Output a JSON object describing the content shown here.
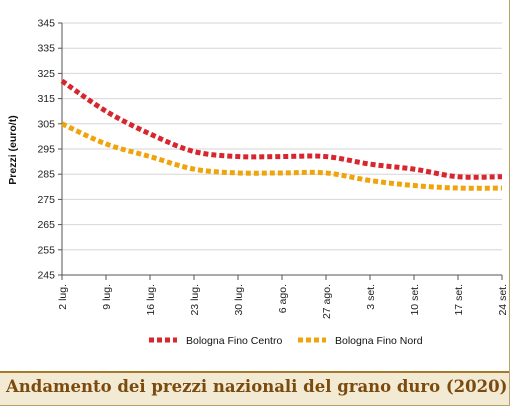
{
  "chart_data": {
    "type": "line",
    "title": "Andamento dei prezzi nazionali del grano duro (2020)",
    "xlabel": "",
    "ylabel": "Prezzi (euro/t)",
    "categories": [
      "2 lug.",
      "9 lug.",
      "16 lug.",
      "23 lug.",
      "30 lug.",
      "6 ago.",
      "27 ago.",
      "3 set.",
      "10 set.",
      "17 set.",
      "24 set."
    ],
    "yticks": [
      245,
      255,
      265,
      275,
      285,
      295,
      305,
      315,
      325,
      335,
      345
    ],
    "ylim": [
      245,
      345
    ],
    "grid": true,
    "legend_position": "bottom",
    "series": [
      {
        "name": "Bologna Fino Centro",
        "color": "#d7262e",
        "values": [
          322,
          310,
          301,
          294,
          292,
          292,
          292,
          289,
          287,
          284,
          284
        ]
      },
      {
        "name": "Bologna Fino Nord",
        "color": "#f0a30a",
        "values": [
          305,
          297,
          292,
          287,
          285.5,
          285.5,
          285.5,
          282.5,
          280.5,
          279.5,
          279.5
        ]
      }
    ]
  },
  "colors": {
    "grid": "#d6d6d6",
    "axis": "#555555",
    "caption_bg": "#f3ead3",
    "caption_text": "#7a4a0e",
    "caption_rule": "#a37a2c"
  }
}
